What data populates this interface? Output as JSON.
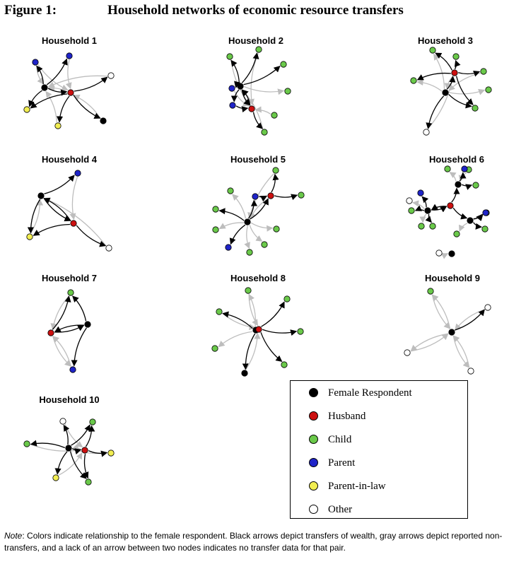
{
  "figure": {
    "label": "Figure 1:",
    "title": "Household networks of economic resource transfers"
  },
  "colors": {
    "respondent": "#000000",
    "husband": "#cc1010",
    "child": "#6ac94a",
    "parent": "#1f24c8",
    "inlaw": "#f2ee52",
    "other": "#ffffff",
    "transfer_arrow": "#000000",
    "nontransfer_arrow": "#bdbdbd"
  },
  "legend": {
    "items": [
      {
        "label": "Female Respondent",
        "role": "respondent"
      },
      {
        "label": "Husband",
        "role": "husband"
      },
      {
        "label": "Child",
        "role": "child"
      },
      {
        "label": "Parent",
        "role": "parent"
      },
      {
        "label": "Parent-in-law",
        "role": "inlaw"
      },
      {
        "label": "Other",
        "role": "other"
      }
    ]
  },
  "households": [
    {
      "title": "Household 1"
    },
    {
      "title": "Household 2"
    },
    {
      "title": "Household 3"
    },
    {
      "title": "Household 4"
    },
    {
      "title": "Household 5"
    },
    {
      "title": "Household 6"
    },
    {
      "title": "Household 7"
    },
    {
      "title": "Household 8"
    },
    {
      "title": "Household 9"
    },
    {
      "title": "Household 10"
    }
  ],
  "note": {
    "lead": "Note",
    "text": ": Colors indicate relationship to the female respondent. Black arrows depict transfers of wealth, gray arrows depict reported non-transfers, and a lack of an arrow between two nodes indicates no transfer data for that pair."
  }
}
